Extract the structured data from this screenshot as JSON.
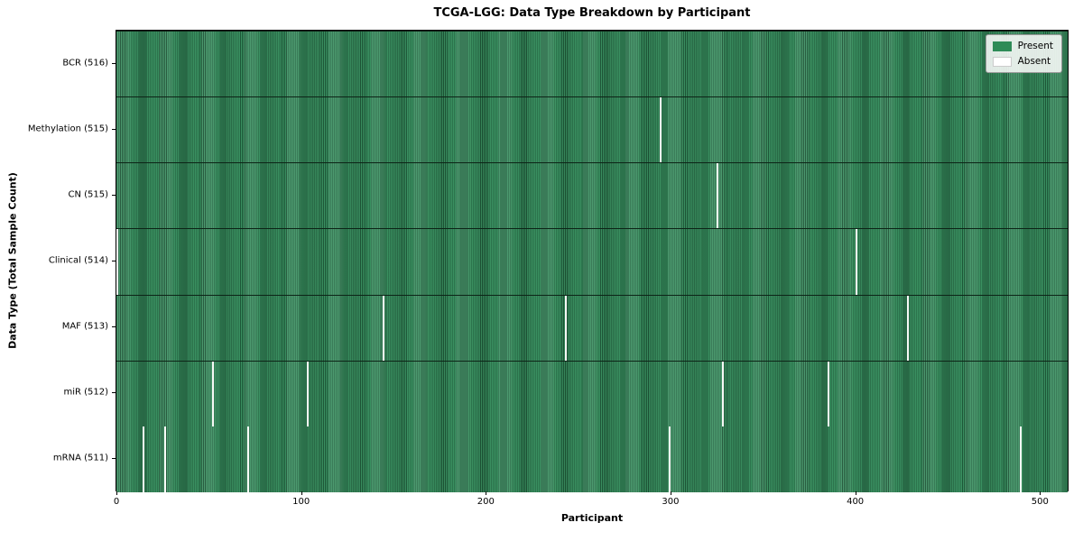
{
  "chart_data": {
    "type": "heatmap",
    "title": "TCGA-LGG: Data Type Breakdown by Participant",
    "xlabel": "Participant",
    "ylabel": "Data Type (Total Sample Count)",
    "n_participants": 516,
    "x_ticks": [
      0,
      100,
      200,
      300,
      400,
      500
    ],
    "xlim": [
      0,
      516
    ],
    "grid": false,
    "legend_position": "upper right",
    "rows": [
      {
        "label": "BCR (516)",
        "data_type": "BCR",
        "present_count": 516,
        "absent_participants": []
      },
      {
        "label": "Methylation (515)",
        "data_type": "Methylation",
        "present_count": 515,
        "absent_participants": [
          294
        ]
      },
      {
        "label": "CN (515)",
        "data_type": "CN",
        "present_count": 515,
        "absent_participants": [
          325
        ]
      },
      {
        "label": "Clinical (514)",
        "data_type": "Clinical",
        "present_count": 514,
        "absent_participants": [
          0,
          400
        ]
      },
      {
        "label": "MAF (513)",
        "data_type": "MAF",
        "present_count": 513,
        "absent_participants": [
          144,
          243,
          428
        ]
      },
      {
        "label": "miR (512)",
        "data_type": "miR",
        "present_count": 512,
        "absent_participants": [
          52,
          103,
          328,
          385
        ]
      },
      {
        "label": "mRNA (511)",
        "data_type": "mRNA",
        "present_count": 511,
        "absent_participants": [
          14,
          26,
          71,
          299,
          489
        ]
      }
    ],
    "legend": [
      {
        "label": "Present",
        "color": "#2e8b57"
      },
      {
        "label": "Absent",
        "color": "#ffffff"
      }
    ],
    "colors": {
      "present": "#2e8b57",
      "absent": "#f7f9f6",
      "bar_edge": "#0d2417",
      "spine": "#000000"
    }
  }
}
